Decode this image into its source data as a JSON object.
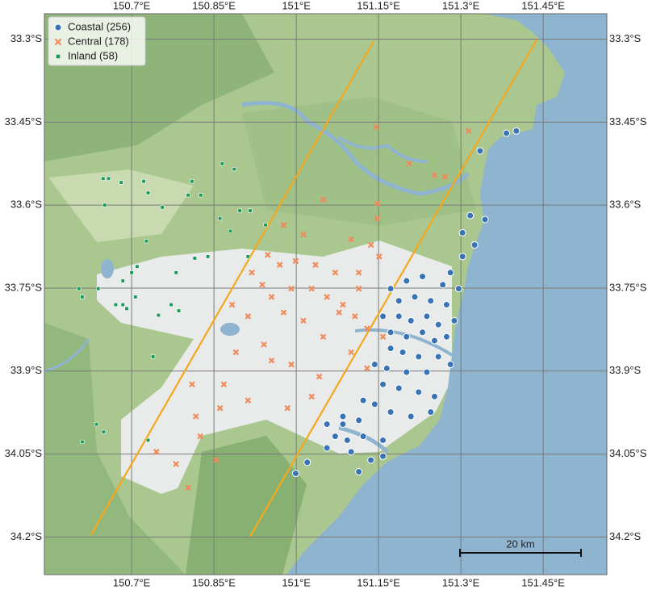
{
  "chart_data": {
    "type": "scatter",
    "xlim": [
      150.541,
      151.566
    ],
    "ylim": [
      -34.268,
      -33.254
    ],
    "xticks": [
      {
        "value": 150.7,
        "label": "150.7°E"
      },
      {
        "value": 150.85,
        "label": "150.85°E"
      },
      {
        "value": 151,
        "label": "151°E"
      },
      {
        "value": 151.15,
        "label": "151.15°E"
      },
      {
        "value": 151.3,
        "label": "151.3°E"
      },
      {
        "value": 151.45,
        "label": "151.45°E"
      }
    ],
    "yticks": [
      {
        "value": -33.3,
        "label": "33.3°S"
      },
      {
        "value": -33.45,
        "label": "33.45°S"
      },
      {
        "value": -33.6,
        "label": "33.6°S"
      },
      {
        "value": -33.75,
        "label": "33.75°S"
      },
      {
        "value": -33.9,
        "label": "33.9°S"
      },
      {
        "value": -34.05,
        "label": "34.05°S"
      },
      {
        "value": -34.2,
        "label": "34.2°S"
      }
    ],
    "grid": true,
    "legend": "upper-left",
    "scale_bar_label": "20 km",
    "lines": [
      {
        "color": "#f5a81c",
        "lon": [
          150.626,
          151.141
        ],
        "lat": [
          -34.196,
          -33.304
        ]
      },
      {
        "color": "#f5a81c",
        "lon": [
          150.916,
          151.438
        ],
        "lat": [
          -34.199,
          -33.301
        ]
      }
    ],
    "series": [
      {
        "name": "Coastal (256)",
        "color": "#3a73b5",
        "marker": "circle",
        "lon": [
          151.383,
          151.401,
          151.335,
          151.317,
          151.344,
          151.303,
          151.325,
          151.303,
          151.281,
          151.23,
          151.201,
          151.267,
          151.296,
          151.172,
          151.187,
          151.216,
          151.245,
          151.274,
          151.158,
          151.187,
          151.209,
          151.238,
          151.259,
          151.288,
          151.172,
          151.201,
          151.23,
          151.252,
          151.274,
          151.172,
          151.194,
          151.223,
          151.259,
          151.281,
          151.143,
          151.165,
          151.201,
          151.238,
          151.158,
          151.187,
          151.223,
          151.252,
          151.122,
          151.143,
          151.172,
          151.209,
          151.245,
          151.085,
          151.114,
          151.056,
          151.071,
          151.093,
          151.122,
          151.158,
          151.056,
          151.1,
          151.136,
          151.158,
          151.02,
          150.999,
          151.114,
          151.085
        ],
        "lat": [
          -33.47,
          -33.466,
          -33.502,
          -33.619,
          -33.626,
          -33.65,
          -33.672,
          -33.693,
          -33.722,
          -33.729,
          -33.737,
          -33.744,
          -33.751,
          -33.751,
          -33.773,
          -33.766,
          -33.773,
          -33.78,
          -33.801,
          -33.801,
          -33.809,
          -33.801,
          -33.816,
          -33.809,
          -33.83,
          -33.838,
          -33.83,
          -33.845,
          -33.838,
          -33.859,
          -33.866,
          -33.874,
          -33.874,
          -33.888,
          -33.888,
          -33.895,
          -33.902,
          -33.902,
          -33.924,
          -33.931,
          -33.938,
          -33.946,
          -33.953,
          -33.96,
          -33.974,
          -33.982,
          -33.974,
          -33.982,
          -33.989,
          -33.996,
          -34.018,
          -34.025,
          -34.018,
          -34.025,
          -34.039,
          -34.046,
          -34.061,
          -34.054,
          -34.065,
          -34.085,
          -34.082,
          -33.996
        ]
      },
      {
        "name": "Central (178)",
        "color": "#f08a5b",
        "marker": "x",
        "lon": [
          151.146,
          151.314,
          151.206,
          151.252,
          151.271,
          151.049,
          151.148,
          151.148,
          150.977,
          151.013,
          151.1,
          151.136,
          151.151,
          150.948,
          150.97,
          150.999,
          151.035,
          151.071,
          151.114,
          150.919,
          150.938,
          150.955,
          150.991,
          151.028,
          151.056,
          151.085,
          151.107,
          151.129,
          151.158,
          150.883,
          150.912,
          150.977,
          151.013,
          151.049,
          151.1,
          150.89,
          150.941,
          150.991,
          151.042,
          150.868,
          150.912,
          151.028,
          150.817,
          150.861,
          150.984,
          150.825,
          150.745,
          150.781,
          150.803,
          150.854,
          151.078,
          151.114,
          151.129,
          150.955,
          150.81
        ],
        "lat": [
          -33.459,
          -33.466,
          -33.525,
          -33.546,
          -33.549,
          -33.59,
          -33.597,
          -33.624,
          -33.636,
          -33.653,
          -33.662,
          -33.672,
          -33.693,
          -33.69,
          -33.708,
          -33.701,
          -33.708,
          -33.722,
          -33.722,
          -33.722,
          -33.744,
          -33.766,
          -33.751,
          -33.751,
          -33.766,
          -33.78,
          -33.801,
          -33.823,
          -33.838,
          -33.78,
          -33.801,
          -33.794,
          -33.809,
          -33.838,
          -33.866,
          -33.866,
          -33.852,
          -33.888,
          -33.91,
          -33.924,
          -33.953,
          -33.946,
          -33.982,
          -33.967,
          -33.967,
          -34.018,
          -34.046,
          -34.068,
          -34.111,
          -34.061,
          -33.794,
          -33.751,
          -33.895,
          -33.881,
          -33.924
        ]
      },
      {
        "name": "Inland (58)",
        "color": "#1a9a5a",
        "marker": "square",
        "lon": [
          150.648,
          150.658,
          150.681,
          150.722,
          150.73,
          150.651,
          150.756,
          150.803,
          150.81,
          150.865,
          150.887,
          150.897,
          150.861,
          150.88,
          150.944,
          150.839,
          150.815,
          150.781,
          150.727,
          150.7,
          150.684,
          150.604,
          150.61,
          150.639,
          150.671,
          150.684,
          150.691,
          150.707,
          150.772,
          150.749,
          150.786,
          150.739,
          150.649,
          150.61,
          150.636,
          150.73,
          150.71,
          150.912,
          150.826,
          150.916
        ],
        "lat": [
          -33.552,
          -33.552,
          -33.559,
          -33.557,
          -33.578,
          -33.6,
          -33.604,
          -33.582,
          -33.557,
          -33.525,
          -33.535,
          -33.61,
          -33.624,
          -33.647,
          -33.636,
          -33.693,
          -33.696,
          -33.722,
          -33.665,
          -33.722,
          -33.737,
          -33.751,
          -33.766,
          -33.751,
          -33.78,
          -33.78,
          -33.787,
          -33.766,
          -33.78,
          -33.799,
          -33.791,
          -33.874,
          -34.01,
          -34.028,
          -33.996,
          -34.025,
          -33.711,
          -33.693,
          -33.582,
          -33.61
        ]
      }
    ]
  }
}
